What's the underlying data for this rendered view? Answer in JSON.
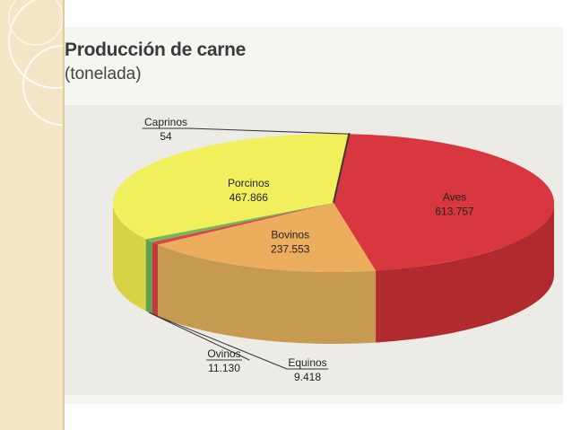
{
  "chart_data": {
    "type": "pie",
    "title": "Producción de carne",
    "subtitle": "(tonelada)",
    "slices": [
      {
        "name": "Aves",
        "value_label": "613.757",
        "value": 613757,
        "color": "#d9373f",
        "side_color": "#b02a30"
      },
      {
        "name": "Bovinos",
        "value_label": "237.553",
        "value": 237553,
        "color": "#ecae5c",
        "side_color": "#c79a52"
      },
      {
        "name": "Equinos",
        "value_label": "9.418",
        "value": 9418,
        "color": "#d64747",
        "side_color": "#c0393b"
      },
      {
        "name": "Ovinos",
        "value_label": "11.130",
        "value": 11130,
        "color": "#72b858",
        "side_color": "#5f9e4a"
      },
      {
        "name": "Porcinos",
        "value_label": "467.866",
        "value": 467866,
        "color": "#f2ef5c",
        "side_color": "#d8d245"
      },
      {
        "name": "Caprinos",
        "value_label": "54",
        "value": 54,
        "color": "#3a3a3a",
        "side_color": "#2a2a2a"
      }
    ]
  }
}
